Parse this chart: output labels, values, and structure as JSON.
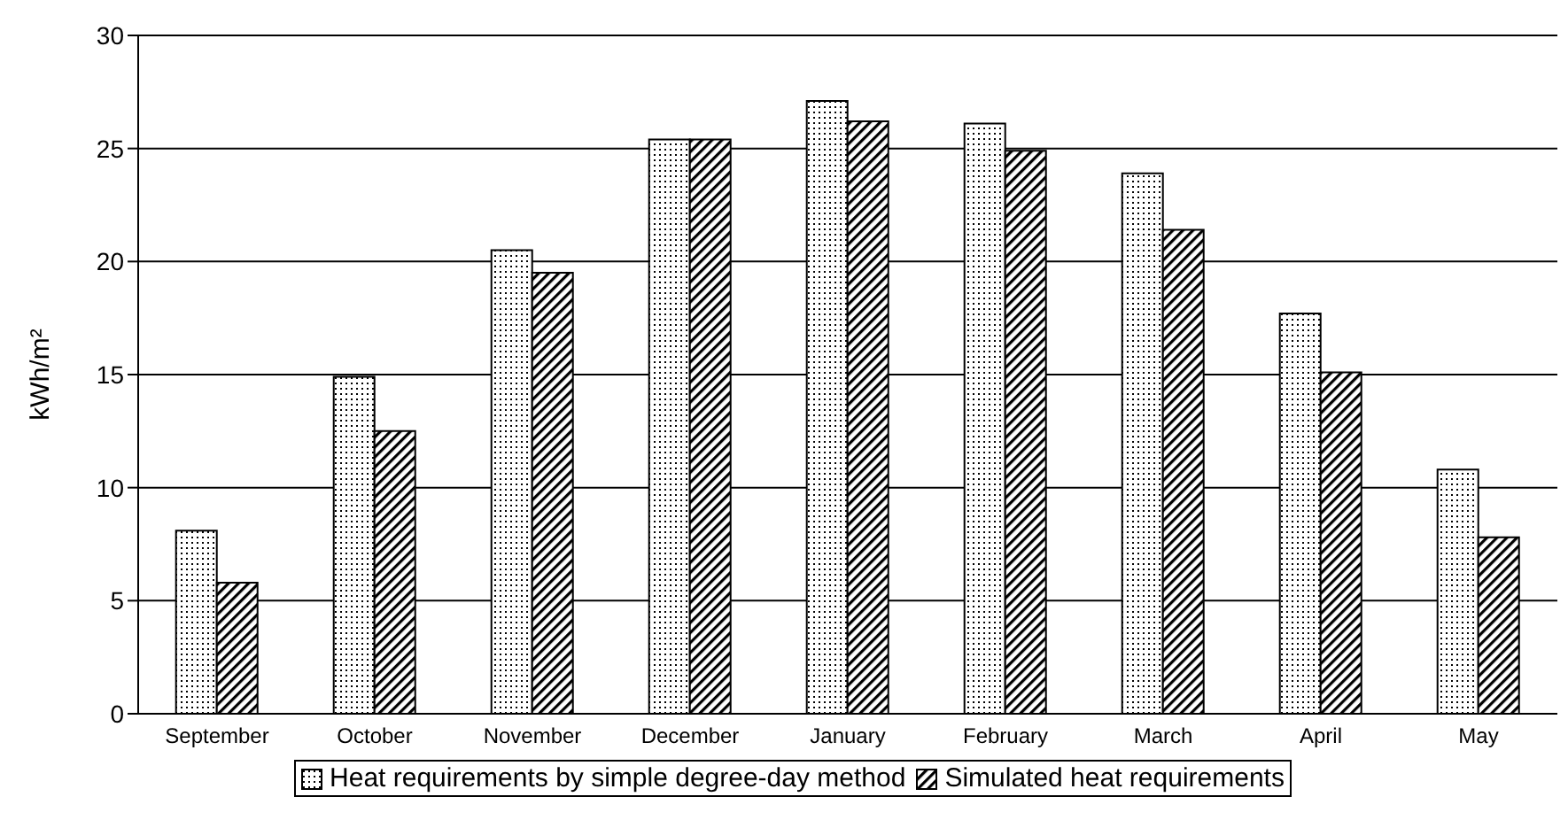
{
  "chart_data": {
    "type": "bar",
    "ylabel": "kWh/m²",
    "categories": [
      "September",
      "October",
      "November",
      "December",
      "January",
      "February",
      "March",
      "April",
      "May"
    ],
    "series": [
      {
        "name": "Heat requirements by simple degree-day method",
        "color": "#000000",
        "values": [
          8.1,
          14.9,
          20.5,
          25.4,
          27.1,
          26.1,
          23.9,
          17.7,
          10.8
        ]
      },
      {
        "name": "Simulated heat requirements",
        "color": "#000000",
        "values": [
          5.8,
          12.5,
          19.5,
          25.4,
          26.2,
          24.9,
          21.4,
          15.1,
          7.8
        ]
      }
    ],
    "ylim": [
      0,
      30
    ],
    "yticks": [
      0,
      5,
      10,
      15,
      20,
      25,
      30
    ],
    "grid": "y",
    "legend": "bottom"
  }
}
